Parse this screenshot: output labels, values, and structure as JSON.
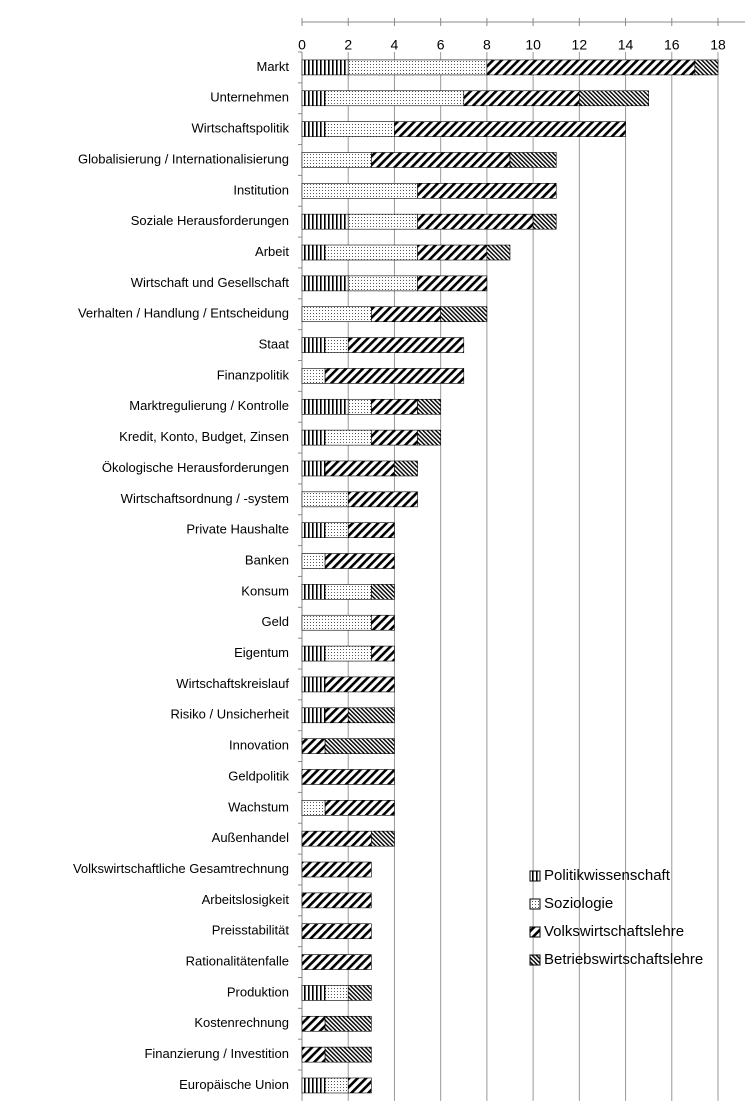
{
  "chart_data": {
    "type": "stacked-barh",
    "categories": [
      "Markt",
      "Unternehmen",
      "Wirtschaftspolitik",
      "Globalisierung / Internationalisierung",
      "Institution",
      "Soziale Herausforderungen",
      "Arbeit",
      "Wirtschaft und Gesellschaft",
      "Verhalten / Handlung / Entscheidung",
      "Staat",
      "Finanzpolitik",
      "Marktregulierung / Kontrolle",
      "Kredit, Konto, Budget, Zinsen",
      "Ökologische Herausforderungen",
      "Wirtschaftsordnung / -system",
      "Private Haushalte",
      "Banken",
      "Konsum",
      "Geld",
      "Eigentum",
      "Wirtschaftskreislauf",
      "Risiko / Unsicherheit",
      "Innovation",
      "Geldpolitik",
      "Wachstum",
      "Außenhandel",
      "Volkswirtschaftliche Gesamtrechnung",
      "Arbeitslosigkeit",
      "Preisstabilität",
      "Rationalitätenfalle",
      "Produktion",
      "Kostenrechnung",
      "Finanzierung / Investition",
      "Europäische Union"
    ],
    "series": [
      {
        "name": "Politikwissenschaft",
        "color": "#000000",
        "pattern": "vertical",
        "values": [
          2,
          1,
          1,
          0,
          0,
          2,
          1,
          2,
          0,
          1,
          0,
          2,
          1,
          1,
          0,
          1,
          0,
          1,
          0,
          1,
          1,
          1,
          0,
          0,
          0,
          0,
          0,
          0,
          0,
          0,
          1,
          0,
          0,
          1
        ]
      },
      {
        "name": "Soziologie",
        "color": "#000000",
        "pattern": "dots",
        "values": [
          6,
          6,
          3,
          3,
          5,
          3,
          4,
          3,
          3,
          1,
          1,
          1,
          2,
          0,
          2,
          1,
          1,
          2,
          3,
          2,
          0,
          0,
          0,
          0,
          1,
          0,
          0,
          0,
          0,
          0,
          1,
          0,
          0,
          1
        ]
      },
      {
        "name": "Volkswirtschaftslehre",
        "color": "#000000",
        "pattern": "diagonal",
        "values": [
          9,
          5,
          10,
          6,
          6,
          5,
          3,
          3,
          3,
          5,
          6,
          2,
          2,
          3,
          3,
          2,
          3,
          0,
          1,
          1,
          3,
          1,
          1,
          4,
          3,
          3,
          3,
          3,
          3,
          3,
          0,
          1,
          1,
          1
        ]
      },
      {
        "name": "Betriebswirtschaftslehre",
        "color": "#000000",
        "pattern": "dense-diagonal",
        "values": [
          1,
          3,
          0,
          2,
          0,
          1,
          1,
          0,
          2,
          0,
          0,
          1,
          1,
          1,
          0,
          0,
          0,
          1,
          0,
          0,
          0,
          2,
          3,
          0,
          0,
          1,
          0,
          0,
          0,
          0,
          1,
          2,
          2,
          0
        ]
      }
    ],
    "xlim": [
      0,
      18
    ],
    "xticks": [
      0,
      2,
      4,
      6,
      8,
      10,
      12,
      14,
      16,
      18
    ],
    "grid": true,
    "legend": "lower right"
  }
}
